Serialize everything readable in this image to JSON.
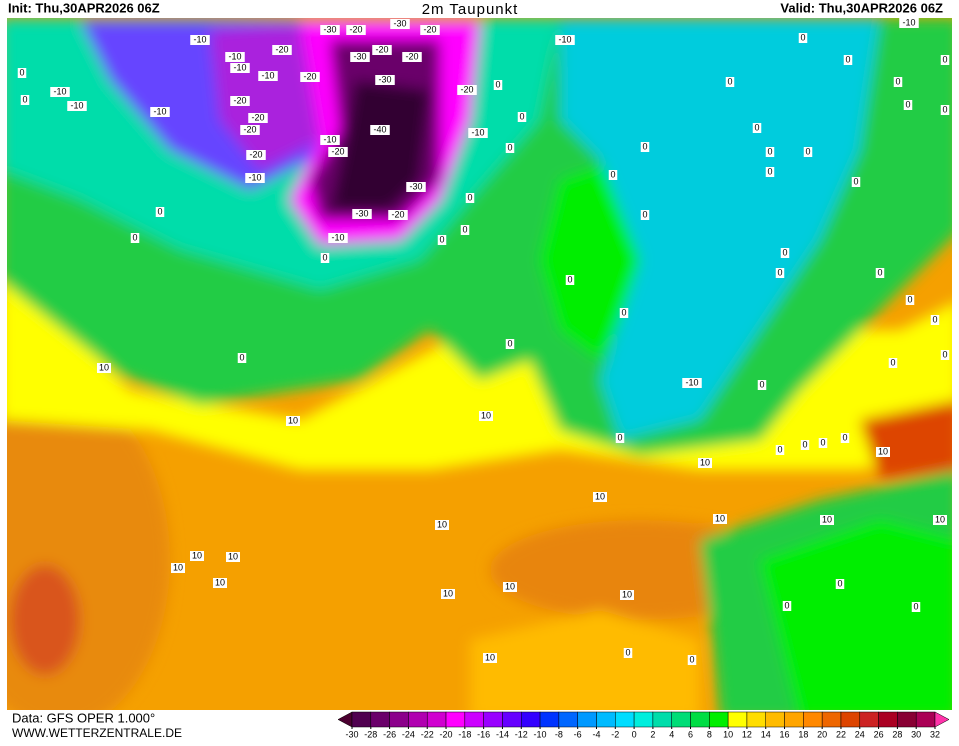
{
  "header": {
    "init": "Init: Thu,30APR2026 06Z",
    "title": "2m Taupunkt",
    "valid": "Valid: Thu,30APR2026 06Z"
  },
  "footer": {
    "source": "Data: GFS OPER 1.000°",
    "website": "WWW.WETTERZENTRALE.DE"
  },
  "colorbar": {
    "ticks": [
      -30,
      -28,
      -26,
      -24,
      -22,
      -20,
      -18,
      -16,
      -14,
      -12,
      -10,
      -8,
      -6,
      -4,
      -2,
      0,
      2,
      4,
      6,
      8,
      10,
      12,
      14,
      16,
      18,
      20,
      22,
      24,
      26,
      28,
      30,
      32
    ],
    "colors": [
      "#4b0030",
      "#500050",
      "#6a006a",
      "#8b008b",
      "#b000b0",
      "#d000d0",
      "#ff00ff",
      "#cc00ff",
      "#9900ff",
      "#6600ff",
      "#3300ff",
      "#0033ff",
      "#0066ff",
      "#0099ff",
      "#00bbff",
      "#00ddff",
      "#00eedd",
      "#00ddaa",
      "#00dd77",
      "#00dd44",
      "#00ee00",
      "#ffff00",
      "#ffdd00",
      "#ffbb00",
      "#ffa500",
      "#ff8800",
      "#ee6600",
      "#dd4400",
      "#cc2222",
      "#aa0022",
      "#880033",
      "#aa0055",
      "#ff33aa"
    ]
  },
  "map": {
    "contour_labels": [
      "-10",
      "-10",
      "-10",
      "-10",
      "-20",
      "-20",
      "-30",
      "-20",
      "-30",
      "-20",
      "-30",
      "-20",
      "-20",
      "-30",
      "-20",
      "0",
      "-10",
      "0",
      "-10",
      "-40",
      "-10",
      "-20",
      "-30",
      "-30",
      "-20",
      "-10",
      "0",
      "0",
      "0",
      "0",
      "-10",
      "-10",
      "-10",
      "-20",
      "-20",
      "-20",
      "-20",
      "-10",
      "0",
      "0",
      "0",
      "0",
      "0",
      "0",
      "10",
      "10",
      "10",
      "0",
      "0",
      "0",
      "-10",
      "0",
      "10",
      "10",
      "10",
      "10",
      "10",
      "10",
      "10",
      "10",
      "10",
      "10",
      "10",
      "10",
      "10",
      "10",
      "10",
      "0",
      "0",
      "0",
      "0",
      "0",
      "0",
      "-10",
      "0",
      "0",
      "0",
      "0",
      "0",
      "0",
      "0",
      "0",
      "0",
      "0",
      "0",
      "0",
      "0",
      "0",
      "0",
      "0",
      "0",
      "0",
      "0",
      "0",
      "0",
      "0",
      "0",
      "0",
      "0",
      "0"
    ]
  }
}
